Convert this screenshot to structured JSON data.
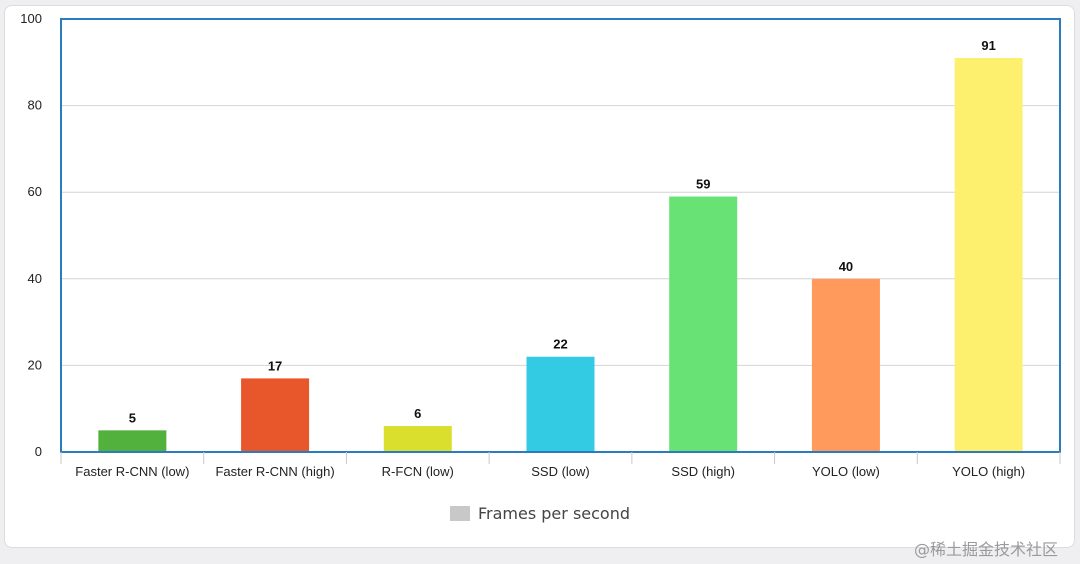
{
  "chart_data": {
    "type": "bar",
    "categories": [
      "Faster R-CNN (low)",
      "Faster R-CNN (high)",
      "R-FCN (low)",
      "SSD (low)",
      "SSD (high)",
      "YOLO (low)",
      "YOLO (high)"
    ],
    "series": [
      {
        "name": "Frames per second",
        "values": [
          5,
          17,
          6,
          22,
          59,
          40,
          91
        ]
      }
    ],
    "bar_colors": [
      "#52b03c",
      "#e8572c",
      "#dadf2e",
      "#32cbe3",
      "#68e274",
      "#ff9a5c",
      "#fdf06e"
    ],
    "y_ticks": [
      0,
      20,
      40,
      60,
      80,
      100
    ],
    "ylim": [
      0,
      100
    ],
    "grid": true,
    "legend_position": "bottom-center",
    "legend_swatch_color": "#c8c8c8",
    "plot_border_color": "#2b7bbf"
  },
  "watermark": "@稀土掘金技术社区"
}
